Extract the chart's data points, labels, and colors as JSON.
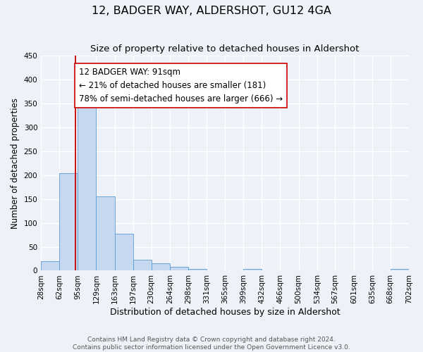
{
  "title": "12, BADGER WAY, ALDERSHOT, GU12 4GA",
  "subtitle": "Size of property relative to detached houses in Aldershot",
  "xlabel": "Distribution of detached houses by size in Aldershot",
  "ylabel": "Number of detached properties",
  "footer_line1": "Contains HM Land Registry data © Crown copyright and database right 2024.",
  "footer_line2": "Contains public sector information licensed under the Open Government Licence v3.0.",
  "bin_labels": [
    "28sqm",
    "62sqm",
    "95sqm",
    "129sqm",
    "163sqm",
    "197sqm",
    "230sqm",
    "264sqm",
    "298sqm",
    "331sqm",
    "365sqm",
    "399sqm",
    "432sqm",
    "466sqm",
    "500sqm",
    "534sqm",
    "567sqm",
    "601sqm",
    "635sqm",
    "668sqm",
    "702sqm"
  ],
  "bin_edges": [
    28,
    62,
    95,
    129,
    163,
    197,
    230,
    264,
    298,
    331,
    365,
    399,
    432,
    466,
    500,
    534,
    567,
    601,
    635,
    668,
    702
  ],
  "bar_heights": [
    20,
    204,
    368,
    156,
    78,
    23,
    15,
    8,
    4,
    0,
    0,
    4,
    0,
    0,
    0,
    0,
    0,
    0,
    0,
    3
  ],
  "bar_color": "#c5d8f0",
  "bar_edge_color": "#5b9bd5",
  "property_line_x": 91,
  "property_line_color": "#cc0000",
  "annotation_line1": "12 BADGER WAY: 91sqm",
  "annotation_line2": "← 21% of detached houses are smaller (181)",
  "annotation_line3": "78% of semi-detached houses are larger (666) →",
  "ylim": [
    0,
    450
  ],
  "yticks": [
    0,
    50,
    100,
    150,
    200,
    250,
    300,
    350,
    400,
    450
  ],
  "background_color": "#eef2f8",
  "plot_bg_color": "#eef2f8",
  "title_fontsize": 11.5,
  "subtitle_fontsize": 9.5,
  "xlabel_fontsize": 9,
  "ylabel_fontsize": 8.5,
  "tick_fontsize": 7.5,
  "annotation_fontsize": 8.5,
  "footer_fontsize": 6.5
}
